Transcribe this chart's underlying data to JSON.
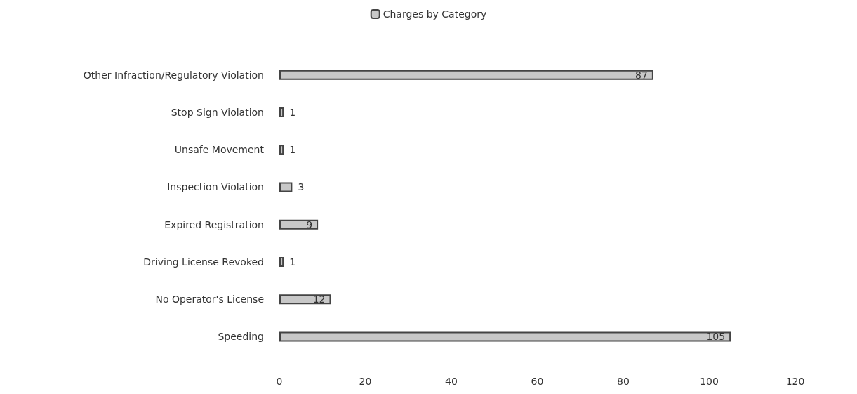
{
  "chart_data": {
    "type": "bar",
    "orientation": "horizontal",
    "categories": [
      "Other Infraction/Regulatory Violation",
      "Stop Sign Violation",
      "Unsafe Movement",
      "Inspection Violation",
      "Expired Registration",
      "Driving License Revoked",
      "No Operator's License",
      "Speeding"
    ],
    "series": [
      {
        "name": "Charges by Category",
        "color": "#c8c8c8",
        "values": [
          87,
          1,
          1,
          3,
          9,
          1,
          12,
          105
        ]
      }
    ],
    "xlim": [
      0,
      120
    ],
    "xticks": [
      0,
      20,
      40,
      60,
      80,
      100,
      120
    ],
    "grid": false,
    "legend": "top",
    "data_labels": true
  }
}
